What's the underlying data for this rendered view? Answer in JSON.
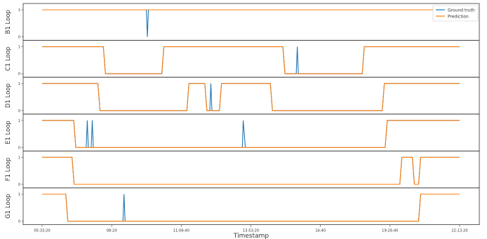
{
  "chart_data": {
    "type": "line",
    "xlabel": "Timestamp",
    "x_ticks": [
      "05:33:20",
      "08:20",
      "11:06:40",
      "13:53:20",
      "16:40",
      "19:26:40",
      "22:13:20"
    ],
    "y_ticks": [
      "0",
      "1"
    ],
    "ylim": [
      0,
      1
    ],
    "legend": {
      "placement": "top-right",
      "entries": [
        "Ground truth",
        "Prediction"
      ]
    },
    "colors": {
      "ground_truth": "#1f77b4",
      "prediction": "#ff7f0e"
    },
    "panels": [
      {
        "ylabel": "B1 Loop",
        "series": [
          {
            "name": "Ground truth",
            "x": [
              "05:33:20",
              "09:43:00",
              "09:45:30",
              "09:48:00",
              "22:13:20"
            ],
            "y": [
              1,
              1,
              0,
              1,
              1
            ]
          },
          {
            "name": "Prediction",
            "x": [
              "05:33:20",
              "22:13:20"
            ],
            "y": [
              1,
              1
            ]
          }
        ]
      },
      {
        "ylabel": "C1 Loop",
        "series": [
          {
            "name": "Ground truth",
            "x": [
              "05:33:20",
              "08:00:00",
              "08:05:00",
              "10:20:00",
              "10:25:00",
              "15:10:00",
              "15:15:00",
              "15:42:00",
              "15:44:30",
              "15:47:00",
              "18:20:00",
              "18:25:00",
              "22:13:20"
            ],
            "y": [
              1,
              1,
              0,
              0,
              1,
              1,
              0,
              0,
              1,
              0,
              0,
              1,
              1
            ]
          },
          {
            "name": "Prediction",
            "x": [
              "05:33:20",
              "08:00:00",
              "08:05:00",
              "10:20:00",
              "10:25:00",
              "15:10:00",
              "15:15:00",
              "18:20:00",
              "18:25:00",
              "22:13:20"
            ],
            "y": [
              1,
              1,
              0,
              0,
              1,
              1,
              0,
              0,
              1,
              1
            ]
          }
        ]
      },
      {
        "ylabel": "D1 Loop",
        "series": [
          {
            "name": "Ground truth",
            "x": [
              "05:33:20",
              "07:47:00",
              "07:52:00",
              "11:20:00",
              "11:25:00",
              "12:03:00",
              "12:08:00",
              "12:15:00",
              "12:17:30",
              "12:20:00",
              "12:38:00",
              "12:43:00",
              "14:40:00",
              "14:45:00",
              "19:08:00",
              "19:13:00",
              "22:13:20"
            ],
            "y": [
              1,
              1,
              0,
              0,
              1,
              1,
              0,
              0,
              1,
              0,
              0,
              1,
              1,
              0,
              0,
              1,
              1
            ]
          },
          {
            "name": "Prediction",
            "x": [
              "05:33:20",
              "07:47:00",
              "07:52:00",
              "11:20:00",
              "11:25:00",
              "12:03:00",
              "12:08:00",
              "12:38:00",
              "12:43:00",
              "14:40:00",
              "14:45:00",
              "19:08:00",
              "19:13:00",
              "22:13:20"
            ],
            "y": [
              1,
              1,
              0,
              0,
              1,
              1,
              0,
              0,
              1,
              1,
              0,
              0,
              1,
              1
            ]
          }
        ]
      },
      {
        "ylabel": "E1 Loop",
        "series": [
          {
            "name": "Ground truth",
            "x": [
              "05:33:20",
              "06:49:00",
              "06:54:00",
              "07:19:00",
              "07:21:30",
              "07:24:00",
              "07:31:00",
              "07:33:30",
              "07:36:00",
              "13:33:00",
              "13:35:00",
              "13:40:00",
              "13:42:00",
              "13:47:00",
              "19:15:00",
              "19:20:00",
              "22:13:20"
            ],
            "y": [
              1,
              1,
              0,
              0,
              1,
              0,
              0,
              1,
              0,
              0,
              1,
              0,
              0,
              0,
              0,
              1,
              1
            ]
          },
          {
            "name": "Prediction",
            "x": [
              "05:33:20",
              "06:49:00",
              "06:54:00",
              "19:15:00",
              "19:20:00",
              "22:13:20"
            ],
            "y": [
              1,
              1,
              0,
              0,
              1,
              1
            ]
          }
        ]
      },
      {
        "ylabel": "F1 Loop",
        "series": [
          {
            "name": "Ground truth",
            "x": [
              "05:33:20",
              "06:45:00",
              "06:50:00",
              "19:50:00",
              "19:55:00",
              "20:20:00",
              "20:25:00",
              "20:35:00",
              "20:40:00",
              "22:13:20"
            ],
            "y": [
              1,
              1,
              0,
              0,
              1,
              1,
              0,
              0,
              1,
              1
            ]
          },
          {
            "name": "Prediction",
            "x": [
              "05:33:20",
              "06:45:00",
              "06:50:00",
              "19:50:00",
              "19:55:00",
              "20:20:00",
              "20:25:00",
              "20:35:00",
              "20:40:00",
              "22:13:20"
            ],
            "y": [
              1,
              1,
              0,
              0,
              1,
              1,
              0,
              0,
              1,
              1
            ]
          }
        ]
      },
      {
        "ylabel": "G1 Loop",
        "series": [
          {
            "name": "Ground truth",
            "x": [
              "05:33:20",
              "06:30:00",
              "06:35:00",
              "08:47:00",
              "08:49:30",
              "08:52:00",
              "20:35:00",
              "20:40:00",
              "22:13:20"
            ],
            "y": [
              1,
              1,
              0,
              0,
              1,
              0,
              0,
              1,
              1
            ]
          },
          {
            "name": "Prediction",
            "x": [
              "05:33:20",
              "06:30:00",
              "06:35:00",
              "20:35:00",
              "20:40:00",
              "22:13:20"
            ],
            "y": [
              1,
              1,
              0,
              0,
              1,
              1
            ]
          }
        ]
      }
    ]
  }
}
